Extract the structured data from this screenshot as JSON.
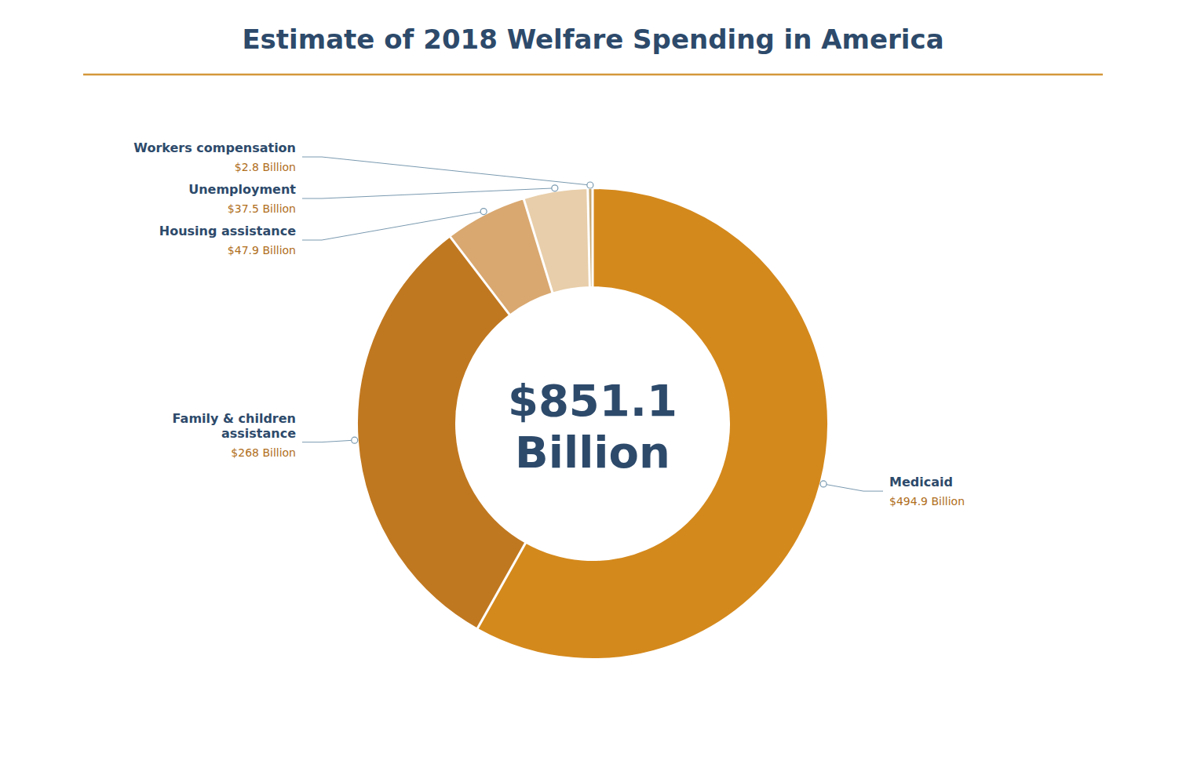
{
  "chart_data": {
    "type": "pie",
    "title": "Estimate of 2018 Welfare Spending in America",
    "categories": [
      "Medicaid",
      "Family & children\nassistance",
      "Housing assistance",
      "Unemployment",
      "Workers compensation"
    ],
    "values": [
      494.9,
      268.0,
      47.9,
      37.5,
      2.8
    ],
    "value_labels": [
      "$494.9 Billion",
      "$268 Billion",
      "$47.9 Billion",
      "$37.5 Billion",
      "$2.8 Billion"
    ],
    "colors": [
      "#d4891c",
      "#c07820",
      "#d9a870",
      "#e8ceaa",
      "#c8a870"
    ],
    "data_labels": true,
    "annotations": [
      "$851.1",
      "Billion"
    ]
  }
}
